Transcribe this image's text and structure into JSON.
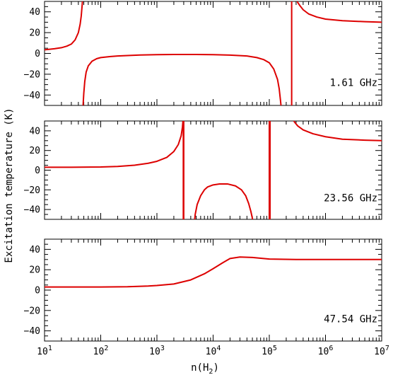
{
  "chart_data": {
    "type": "line",
    "ylabel": "Excitation temperature (K)",
    "xlabel_main": "n(H",
    "xlabel_sub": "2",
    "xlabel_close": ")",
    "x_scale": "log",
    "xlim": [
      10,
      10000000
    ],
    "ylim": [
      -50,
      50
    ],
    "y_ticks": [
      -40,
      -20,
      0,
      20,
      40
    ],
    "y_tick_labels": [
      "−40",
      "−20",
      "0",
      "20",
      "40"
    ],
    "x_tick_base": "10",
    "x_tick_exponents": [
      "1",
      "2",
      "3",
      "4",
      "5",
      "6",
      "7"
    ],
    "grid": false,
    "line_color": "#dd0000",
    "panels": [
      {
        "label": "1.61 GHz",
        "segments": [
          [
            [
              10,
              3.5
            ],
            [
              15,
              4.5
            ],
            [
              20,
              5.5
            ],
            [
              25,
              7
            ],
            [
              30,
              9
            ],
            [
              35,
              13
            ],
            [
              40,
              20
            ],
            [
              43,
              28
            ],
            [
              45,
              36
            ],
            [
              47,
              48
            ],
            [
              48,
              55
            ]
          ],
          [
            [
              48,
              -55
            ],
            [
              49,
              -46
            ],
            [
              50,
              -38
            ],
            [
              52,
              -27
            ],
            [
              55,
              -18
            ],
            [
              60,
              -12
            ],
            [
              70,
              -7.5
            ],
            [
              85,
              -5
            ],
            [
              100,
              -4
            ],
            [
              150,
              -3
            ],
            [
              200,
              -2.5
            ],
            [
              300,
              -2
            ],
            [
              500,
              -1.5
            ],
            [
              1000,
              -1.2
            ],
            [
              2000,
              -1
            ],
            [
              5000,
              -1
            ],
            [
              10000,
              -1.2
            ],
            [
              20000,
              -1.6
            ],
            [
              40000,
              -2.5
            ],
            [
              60000,
              -4
            ],
            [
              80000,
              -6
            ],
            [
              100000,
              -9
            ],
            [
              120000,
              -15
            ],
            [
              140000,
              -25
            ],
            [
              150000,
              -34
            ],
            [
              158000,
              -45
            ],
            [
              165000,
              -55
            ]
          ],
          [
            [
              250000,
              -55
            ],
            [
              250000,
              55
            ]
          ],
          [
            [
              300000,
              55
            ],
            [
              320000,
              49
            ],
            [
              350000,
              46
            ],
            [
              400000,
              42
            ],
            [
              500000,
              38
            ],
            [
              700000,
              35
            ],
            [
              1000000,
              33
            ],
            [
              2000000,
              31.5
            ],
            [
              5000000,
              30.5
            ],
            [
              10000000,
              30
            ]
          ]
        ]
      },
      {
        "label": "23.56 GHz",
        "segments": [
          [
            [
              10,
              3
            ],
            [
              30,
              3
            ],
            [
              100,
              3.2
            ],
            [
              200,
              3.8
            ],
            [
              400,
              5
            ],
            [
              700,
              7
            ],
            [
              1000,
              9
            ],
            [
              1500,
              13
            ],
            [
              2000,
              19
            ],
            [
              2400,
              26
            ],
            [
              2700,
              35
            ],
            [
              2850,
              44
            ],
            [
              2950,
              55
            ]
          ],
          [
            [
              2950,
              -55
            ],
            [
              2950,
              55
            ]
          ],
          [
            [
              3000,
              -55
            ],
            [
              3000,
              55
            ]
          ],
          [
            [
              4600,
              -55
            ],
            [
              4800,
              -45
            ],
            [
              5200,
              -35
            ],
            [
              6000,
              -26
            ],
            [
              7000,
              -20
            ],
            [
              8000,
              -17
            ],
            [
              10000,
              -15
            ],
            [
              13000,
              -14
            ],
            [
              18000,
              -14
            ],
            [
              25000,
              -16
            ],
            [
              32000,
              -20
            ],
            [
              38000,
              -26
            ],
            [
              43000,
              -34
            ],
            [
              47000,
              -42
            ],
            [
              50000,
              -49
            ],
            [
              52000,
              -55
            ]
          ],
          [
            [
              100000,
              -55
            ],
            [
              100000,
              55
            ]
          ],
          [
            [
              103000,
              -55
            ],
            [
              103000,
              55
            ]
          ],
          [
            [
              250000,
              55
            ],
            [
              280000,
              49
            ],
            [
              320000,
              45
            ],
            [
              400000,
              41
            ],
            [
              600000,
              37
            ],
            [
              1000000,
              34
            ],
            [
              2000000,
              31.5
            ],
            [
              5000000,
              30.5
            ],
            [
              10000000,
              30
            ]
          ]
        ]
      },
      {
        "label": "47.54 GHz",
        "segments": [
          [
            [
              10,
              3
            ],
            [
              100,
              3
            ],
            [
              300,
              3.3
            ],
            [
              700,
              4
            ],
            [
              1000,
              4.5
            ],
            [
              2000,
              6
            ],
            [
              4000,
              10
            ],
            [
              7000,
              16
            ],
            [
              10000,
              21
            ],
            [
              15000,
              27
            ],
            [
              20000,
              31
            ],
            [
              30000,
              32.5
            ],
            [
              50000,
              32
            ],
            [
              100000,
              30.5
            ],
            [
              300000,
              30
            ],
            [
              1000000,
              30
            ],
            [
              10000000,
              30
            ]
          ]
        ]
      }
    ]
  }
}
